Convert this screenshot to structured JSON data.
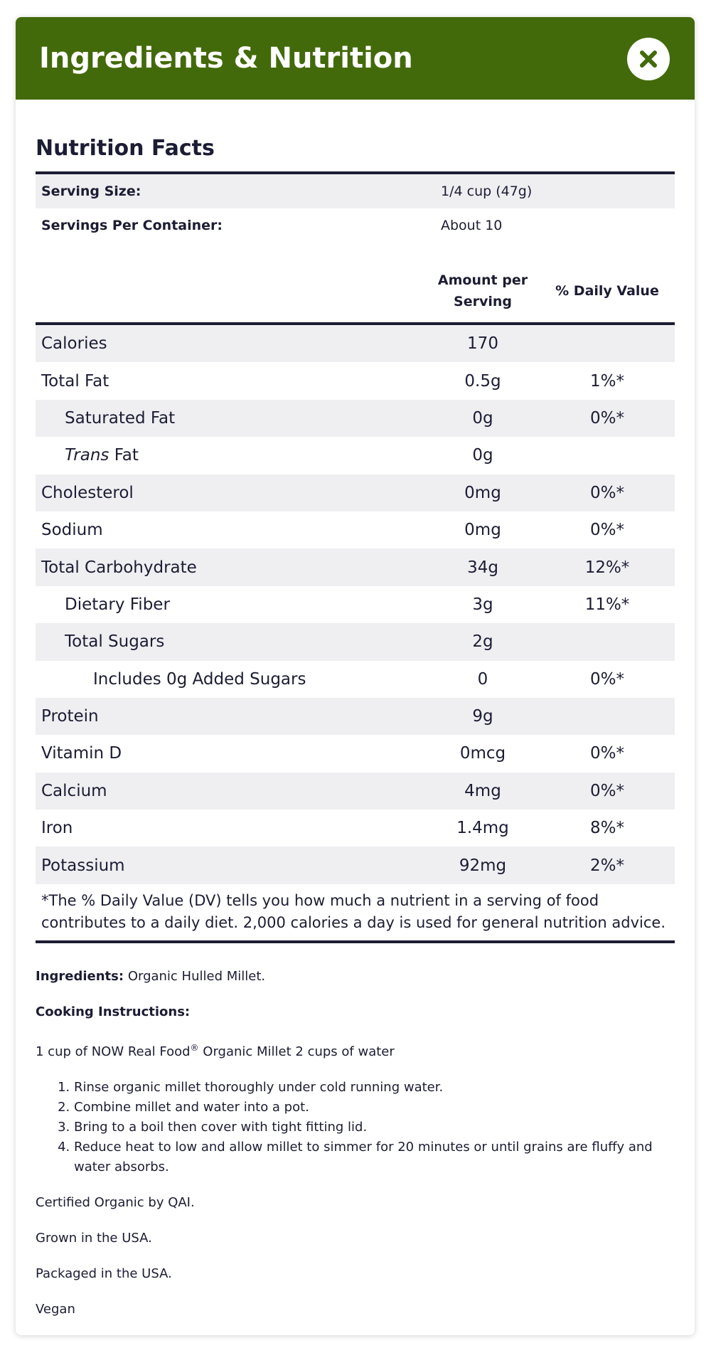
{
  "header": {
    "title": "Ingredients & Nutrition"
  },
  "nutrition": {
    "title": "Nutrition Facts",
    "serving": [
      {
        "label": "Serving Size:",
        "value": "1/4 cup (47g)"
      },
      {
        "label": "Servings Per Container:",
        "value": "About 10"
      }
    ],
    "columns": {
      "amount": "Amount per Serving",
      "dv": "% Daily Value"
    },
    "rows": [
      {
        "name": "Calories",
        "amount": "170"
      },
      {
        "name": "Total Fat",
        "amount": "0.5g",
        "dv": "1%*"
      },
      {
        "name": "Saturated Fat",
        "amount": "0g",
        "dv": "0%*"
      },
      {
        "name_em": "Trans",
        "name": "Fat",
        "amount": "0g"
      },
      {
        "name": "Cholesterol",
        "amount": "0mg",
        "dv": "0%*"
      },
      {
        "name": "Sodium",
        "amount": "0mg",
        "dv": "0%*"
      },
      {
        "name": "Total Carbohydrate",
        "amount": "34g",
        "dv": "12%*"
      },
      {
        "name": "Dietary Fiber",
        "amount": "3g",
        "dv": "11%*"
      },
      {
        "name": "Total Sugars",
        "amount": "2g"
      },
      {
        "name": "Includes 0g Added Sugars",
        "amount": "0",
        "dv": "0%*"
      },
      {
        "name": "Protein",
        "amount": "9g"
      },
      {
        "name": "Vitamin D",
        "amount": "0mcg",
        "dv": "0%*"
      },
      {
        "name": "Calcium",
        "amount": "4mg",
        "dv": "0%*"
      },
      {
        "name": "Iron",
        "amount": "1.4mg",
        "dv": "8%*"
      },
      {
        "name": "Potassium",
        "amount": "92mg",
        "dv": "2%*"
      }
    ],
    "footnote": "*The % Daily Value (DV) tells you how much a nutrient in a serving of food contributes to a daily diet. 2,000 calories a day is used for general nutrition advice."
  },
  "details": {
    "ingredients_label": "Ingredients:",
    "ingredients": "Organic Hulled Millet.",
    "cooking_label": "Cooking Instructions:",
    "cooking_intro": {
      "before": "1 cup of NOW Real Food",
      "mark": "®",
      "after": "Organic Millet 2 cups of water"
    },
    "steps": [
      "Rinse organic millet thoroughly under cold running water.",
      "Combine millet and water into a pot.",
      "Bring to a boil then cover with tight fitting lid.",
      "Reduce heat to low and allow millet to simmer for 20 minutes or until grains are fluffy and water absorbs."
    ],
    "notes": [
      "Certified Organic by QAI.",
      "Grown in the USA.",
      "Packaged in the USA.",
      "Vegan"
    ]
  }
}
